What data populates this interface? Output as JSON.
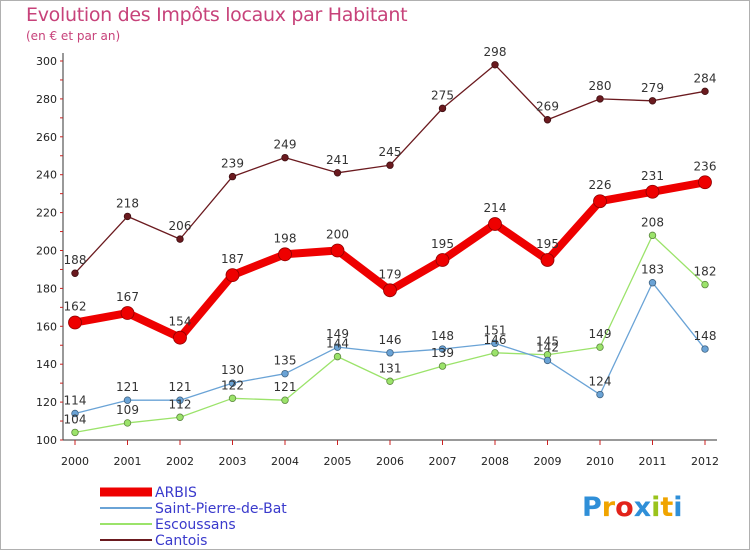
{
  "chart_data": {
    "type": "line",
    "title": "Evolution des Impôts locaux par Habitant",
    "subtitle": "(en € et par an)",
    "xlabel": "",
    "ylabel": "",
    "categories": [
      "2000",
      "2001",
      "2002",
      "2003",
      "2004",
      "2005",
      "2006",
      "2007",
      "2008",
      "2009",
      "2010",
      "2011",
      "2012"
    ],
    "ylim": [
      100,
      300
    ],
    "yticks": [
      100,
      120,
      140,
      160,
      180,
      200,
      220,
      240,
      260,
      280,
      300
    ],
    "grid": false,
    "legend_position": "bottom-left",
    "series": [
      {
        "name": "Cantois",
        "color": "#6b1a1f",
        "values": [
          188,
          218,
          206,
          239,
          249,
          241,
          245,
          275,
          298,
          269,
          280,
          279,
          284
        ]
      },
      {
        "name": "Escoussans",
        "color": "#9be36a",
        "values": [
          104,
          109,
          112,
          122,
          121,
          144,
          131,
          139,
          146,
          145,
          149,
          208,
          182
        ]
      },
      {
        "name": "Saint-Pierre-de-Bat",
        "color": "#6aa3d6",
        "values": [
          114,
          121,
          121,
          130,
          135,
          149,
          146,
          148,
          151,
          142,
          124,
          183,
          148
        ]
      },
      {
        "name": "ARBIS",
        "color": "#ee0000",
        "values": [
          162,
          167,
          154,
          187,
          198,
          200,
          179,
          195,
          214,
          195,
          226,
          231,
          236
        ]
      }
    ],
    "legend_order": [
      "ARBIS",
      "Saint-Pierre-de-Bat",
      "Escoussans",
      "Cantois"
    ]
  },
  "logo": {
    "text": "Proxiti",
    "letters": [
      {
        "ch": "P",
        "color": "#2f8fd8"
      },
      {
        "ch": "r",
        "color": "#f0a400"
      },
      {
        "ch": "o",
        "color": "#e2231a"
      },
      {
        "ch": "x",
        "color": "#2f8fd8"
      },
      {
        "ch": "i",
        "color": "#9ac31c"
      },
      {
        "ch": "t",
        "color": "#f0a400"
      },
      {
        "ch": "i",
        "color": "#2f8fd8"
      }
    ]
  }
}
